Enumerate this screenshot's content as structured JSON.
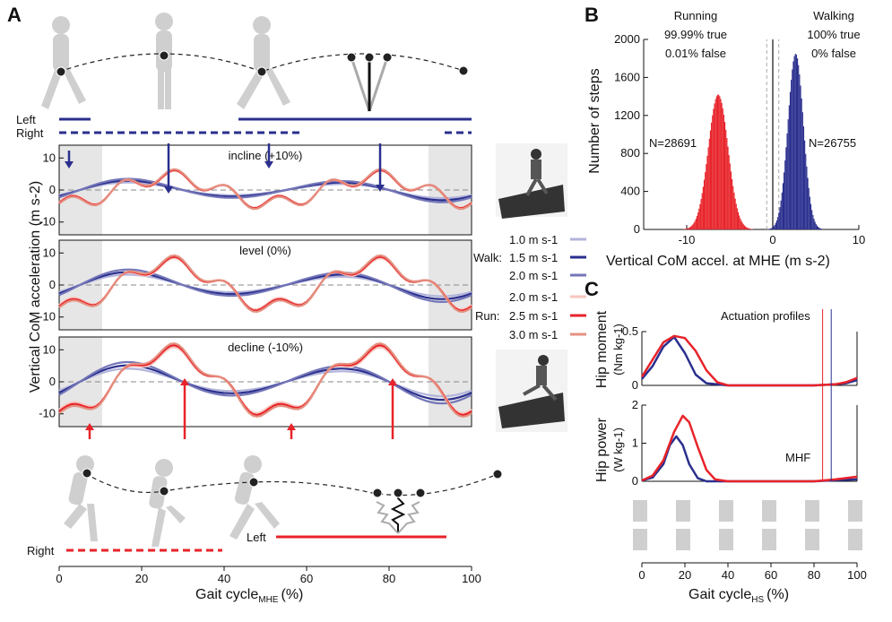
{
  "panels": {
    "A": {
      "label": "A",
      "legend_left": "Left",
      "legend_right": "Right",
      "legend_left_bottom": "Left",
      "legend_right_bottom": "Right",
      "conditions": [
        "incline (+10%)",
        "level (0%)",
        "decline (-10%)"
      ],
      "ylabel": "Vertical CoM acceleration (m s-2)",
      "xlabel": "Gait cycle",
      "xlabel_sub": "MHE",
      "xlabel_unit": "(%)",
      "x_ticks": [
        "0",
        "20",
        "40",
        "60",
        "80",
        "100"
      ],
      "y_ticks": [
        "10",
        "0",
        "-10"
      ],
      "legend": {
        "walk_label": "Walk:",
        "run_label": "Run:",
        "walk_speeds": [
          "1.0 m s-1",
          "1.5 m s-1",
          "2.0 m s-1"
        ],
        "run_speeds": [
          "2.0 m s-1",
          "2.5 m s-1",
          "3.0 m s-1"
        ],
        "walk_colors": [
          "#b2b4da",
          "#2a2f8e",
          "#7476b8"
        ],
        "run_colors": [
          "#f6c6be",
          "#e8232a",
          "#e49080"
        ]
      }
    },
    "B": {
      "label": "B",
      "running_title": "Running",
      "running_true": "99.99% true",
      "running_false": "0.01% false",
      "walking_title": "Walking",
      "walking_true": "100% true",
      "walking_false": "0% false",
      "n_running": "N=28691",
      "n_walking": "N=26755",
      "ylabel": "Number of steps",
      "xlabel": "Vertical CoM accel. at MHE (m s-2)",
      "x_ticks": [
        "-10",
        "0",
        "10"
      ],
      "y_ticks": [
        "0",
        "400",
        "800",
        "1200",
        "1600",
        "2000"
      ]
    },
    "C": {
      "label": "C",
      "title": "Actuation profiles",
      "ylabel_top": "Hip moment",
      "ylabel_top_unit": "(Nm kg-1)",
      "ylabel_bottom": "Hip power",
      "ylabel_bottom_unit": "(W kg-1)",
      "mhf_label": "MHF",
      "xlabel": "Gait cycle",
      "xlabel_sub": "HS",
      "xlabel_unit": "(%)",
      "x_ticks": [
        "0",
        "20",
        "40",
        "60",
        "80",
        "100"
      ],
      "y_ticks_top": [
        "0",
        "0.5"
      ],
      "y_ticks_bottom": [
        "0",
        "1",
        "2"
      ]
    }
  },
  "colors": {
    "walk": "#2a2f8e",
    "run": "#e8232a",
    "shade": "#e6e6e6",
    "figure": "#cfcfcf"
  },
  "chart_data": [
    {
      "type": "histogram",
      "panel": "B",
      "xlabel": "Vertical CoM accel. at MHE (m s-2)",
      "ylabel": "Number of steps",
      "xlim": [
        -15,
        10
      ],
      "ylim": [
        0,
        2000
      ],
      "series": [
        {
          "name": "Running",
          "color": "#e8232a",
          "n": 28691,
          "peak_x": -6.4,
          "peak_count": 1420,
          "spread": 1.15
        },
        {
          "name": "Walking",
          "color": "#2a2f8e",
          "n": 26755,
          "peak_x": 2.6,
          "peak_count": 1850,
          "spread": 0.9
        }
      ]
    },
    {
      "type": "line",
      "panel": "C-top",
      "ylabel": "Hip moment (Nm kg-1)",
      "xlim": [
        0,
        100
      ],
      "ylim": [
        0,
        0.5
      ],
      "series": [
        {
          "name": "walk",
          "color": "#2a2f8e",
          "x": [
            0,
            5,
            10,
            15,
            20,
            25,
            30,
            40,
            60,
            80,
            90,
            95,
            100
          ],
          "y": [
            0.06,
            0.18,
            0.36,
            0.45,
            0.3,
            0.1,
            0.02,
            0.0,
            0.0,
            0.0,
            0.01,
            0.02,
            0.05
          ]
        },
        {
          "name": "run",
          "color": "#e8232a",
          "x": [
            0,
            5,
            10,
            15,
            20,
            25,
            30,
            35,
            40,
            60,
            80,
            90,
            95,
            100
          ],
          "y": [
            0.08,
            0.24,
            0.4,
            0.46,
            0.44,
            0.32,
            0.14,
            0.03,
            0.0,
            0.0,
            0.0,
            0.01,
            0.03,
            0.07
          ]
        }
      ]
    },
    {
      "type": "line",
      "panel": "C-bottom",
      "ylabel": "Hip power (W kg-1)",
      "xlim": [
        0,
        100
      ],
      "ylim": [
        0,
        2
      ],
      "series": [
        {
          "name": "walk",
          "color": "#2a2f8e",
          "x": [
            0,
            5,
            10,
            13,
            16,
            19,
            22,
            26,
            30,
            40,
            60,
            80,
            90,
            100
          ],
          "y": [
            0.02,
            0.1,
            0.45,
            0.95,
            1.18,
            0.95,
            0.45,
            0.08,
            0.0,
            0.0,
            0.0,
            0.0,
            0.03,
            0.05
          ]
        },
        {
          "name": "run",
          "color": "#e8232a",
          "x": [
            0,
            5,
            10,
            15,
            19,
            22,
            26,
            30,
            34,
            40,
            60,
            80,
            90,
            100
          ],
          "y": [
            0.02,
            0.15,
            0.55,
            1.3,
            1.72,
            1.55,
            0.9,
            0.3,
            0.05,
            0.0,
            0.0,
            0.0,
            0.05,
            0.12
          ]
        }
      ]
    }
  ]
}
